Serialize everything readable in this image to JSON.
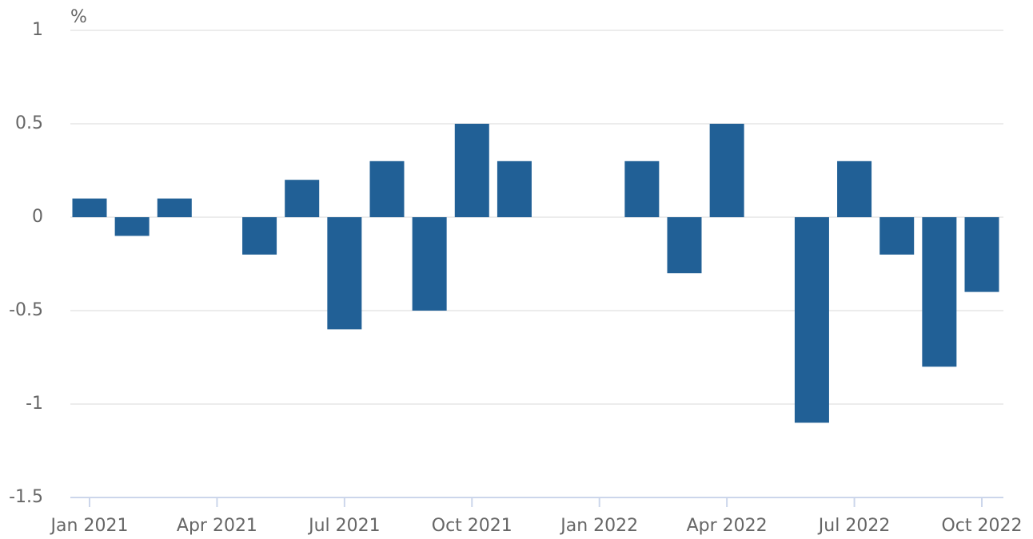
{
  "chart_data": {
    "type": "bar",
    "y_label": "%",
    "categories": [
      "Jan 2021",
      null,
      null,
      "Apr 2021",
      null,
      null,
      "Jul 2021",
      null,
      null,
      "Oct 2021",
      null,
      null,
      "Jan 2022",
      null,
      null,
      "Apr 2022",
      null,
      null,
      "Jul 2022",
      null,
      null,
      "Oct 2022"
    ],
    "values": [
      0.1,
      -0.1,
      0.1,
      0,
      -0.2,
      0.2,
      -0.6,
      0.3,
      -0.5,
      0.5,
      0.3,
      0,
      0,
      0.3,
      -0.3,
      0.5,
      0,
      -1.1,
      0.3,
      -0.2,
      -0.8,
      -0.4
    ],
    "color": "#216096",
    "ylim": [
      -1.5,
      1
    ],
    "yticks": [
      -1.5,
      -1,
      -0.5,
      0,
      0.5,
      1
    ],
    "grid": true
  }
}
